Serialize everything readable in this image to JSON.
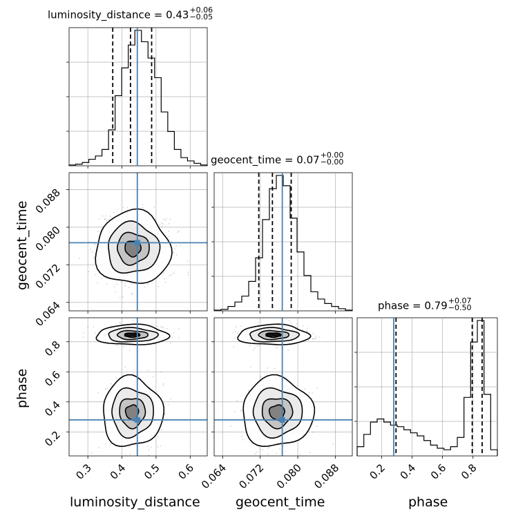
{
  "colors": {
    "truth": "#4682b4",
    "hist": "#000000",
    "grid": "#b0b0b0"
  },
  "titles": {
    "luminosity_distance": {
      "name": "luminosity_distance",
      "median": "0.43",
      "plus": "+0.06",
      "minus": "−0.05"
    },
    "geocent_time": {
      "name": "geocent_time",
      "median": "0.07",
      "plus": "+0.00",
      "minus": "−0.00"
    },
    "phase": {
      "name": "phase",
      "median": "0.79",
      "plus": "+0.07",
      "minus": "−0.50"
    }
  },
  "axis_labels": {
    "luminosity_distance": "luminosity_distance",
    "geocent_time": "geocent_time",
    "phase": "phase"
  },
  "chart_data": {
    "type": "corner",
    "parameters": [
      "luminosity_distance",
      "geocent_time",
      "phase"
    ],
    "ranges": {
      "luminosity_distance": [
        0.245,
        0.65
      ],
      "geocent_time": [
        0.0622,
        0.0916
      ],
      "phase": [
        0.04,
        0.96
      ]
    },
    "ticks": {
      "luminosity_distance": [
        "0.3",
        "0.4",
        "0.5",
        "0.6"
      ],
      "geocent_time": [
        "0.064",
        "0.072",
        "0.080",
        "0.088"
      ],
      "phase": [
        "0.2",
        "0.4",
        "0.6",
        "0.8"
      ]
    },
    "truths": {
      "luminosity_distance": 0.445,
      "geocent_time": 0.0767,
      "phase": 0.28
    },
    "quantiles": {
      "luminosity_distance": [
        0.373,
        0.425,
        0.487
      ],
      "geocent_time": [
        0.0717,
        0.0746,
        0.0786
      ],
      "phase": [
        0.295,
        0.795,
        0.86
      ]
    },
    "histograms": {
      "luminosity_distance": [
        0.5,
        1,
        2,
        4,
        6,
        10,
        22,
        43,
        60,
        74,
        83,
        76,
        66,
        54,
        33,
        21,
        10,
        5,
        3,
        1.5,
        0.5
      ],
      "geocent_time": [
        0.5,
        1,
        3,
        6,
        10,
        20,
        36,
        62,
        83,
        92,
        85,
        63,
        40,
        24,
        13,
        8,
        5,
        3,
        1.5,
        0.5
      ],
      "phase": [
        3,
        7,
        11,
        12,
        11,
        10,
        9.5,
        8.5,
        7.5,
        6.5,
        5,
        3.5,
        2.5,
        2,
        3,
        6,
        19,
        37,
        44,
        20,
        2
      ]
    },
    "grid": true,
    "truth_points": [
      {
        "x": "luminosity_distance",
        "y": "geocent_time"
      },
      {
        "x": "luminosity_distance",
        "y": "phase"
      },
      {
        "x": "geocent_time",
        "y": "phase"
      }
    ]
  }
}
